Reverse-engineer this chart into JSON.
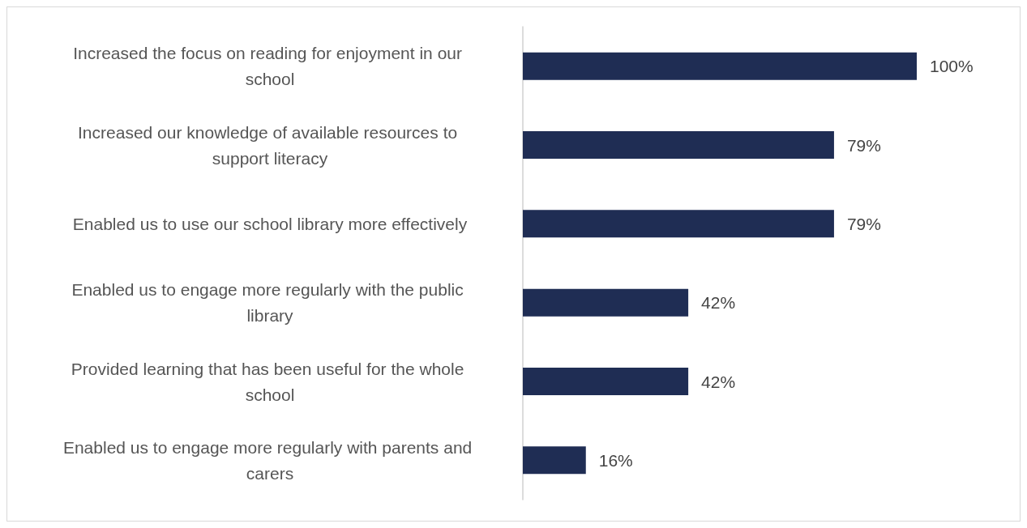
{
  "chart_data": {
    "type": "bar",
    "orientation": "horizontal",
    "categories": [
      "Increased the focus on reading for enjoyment in our school",
      "Increased our knowledge of available resources to support literacy",
      "Enabled us to use our school library more effectively",
      "Enabled us to engage more regularly with the public library",
      "Provided learning that has been useful for the whole school",
      "Enabled us to engage more regularly with parents and carers"
    ],
    "values": [
      100,
      79,
      79,
      42,
      42,
      16
    ],
    "value_labels": [
      "100%",
      "79%",
      "79%",
      "42%",
      "42%",
      "16%"
    ],
    "color": "#1f2d54"
  }
}
